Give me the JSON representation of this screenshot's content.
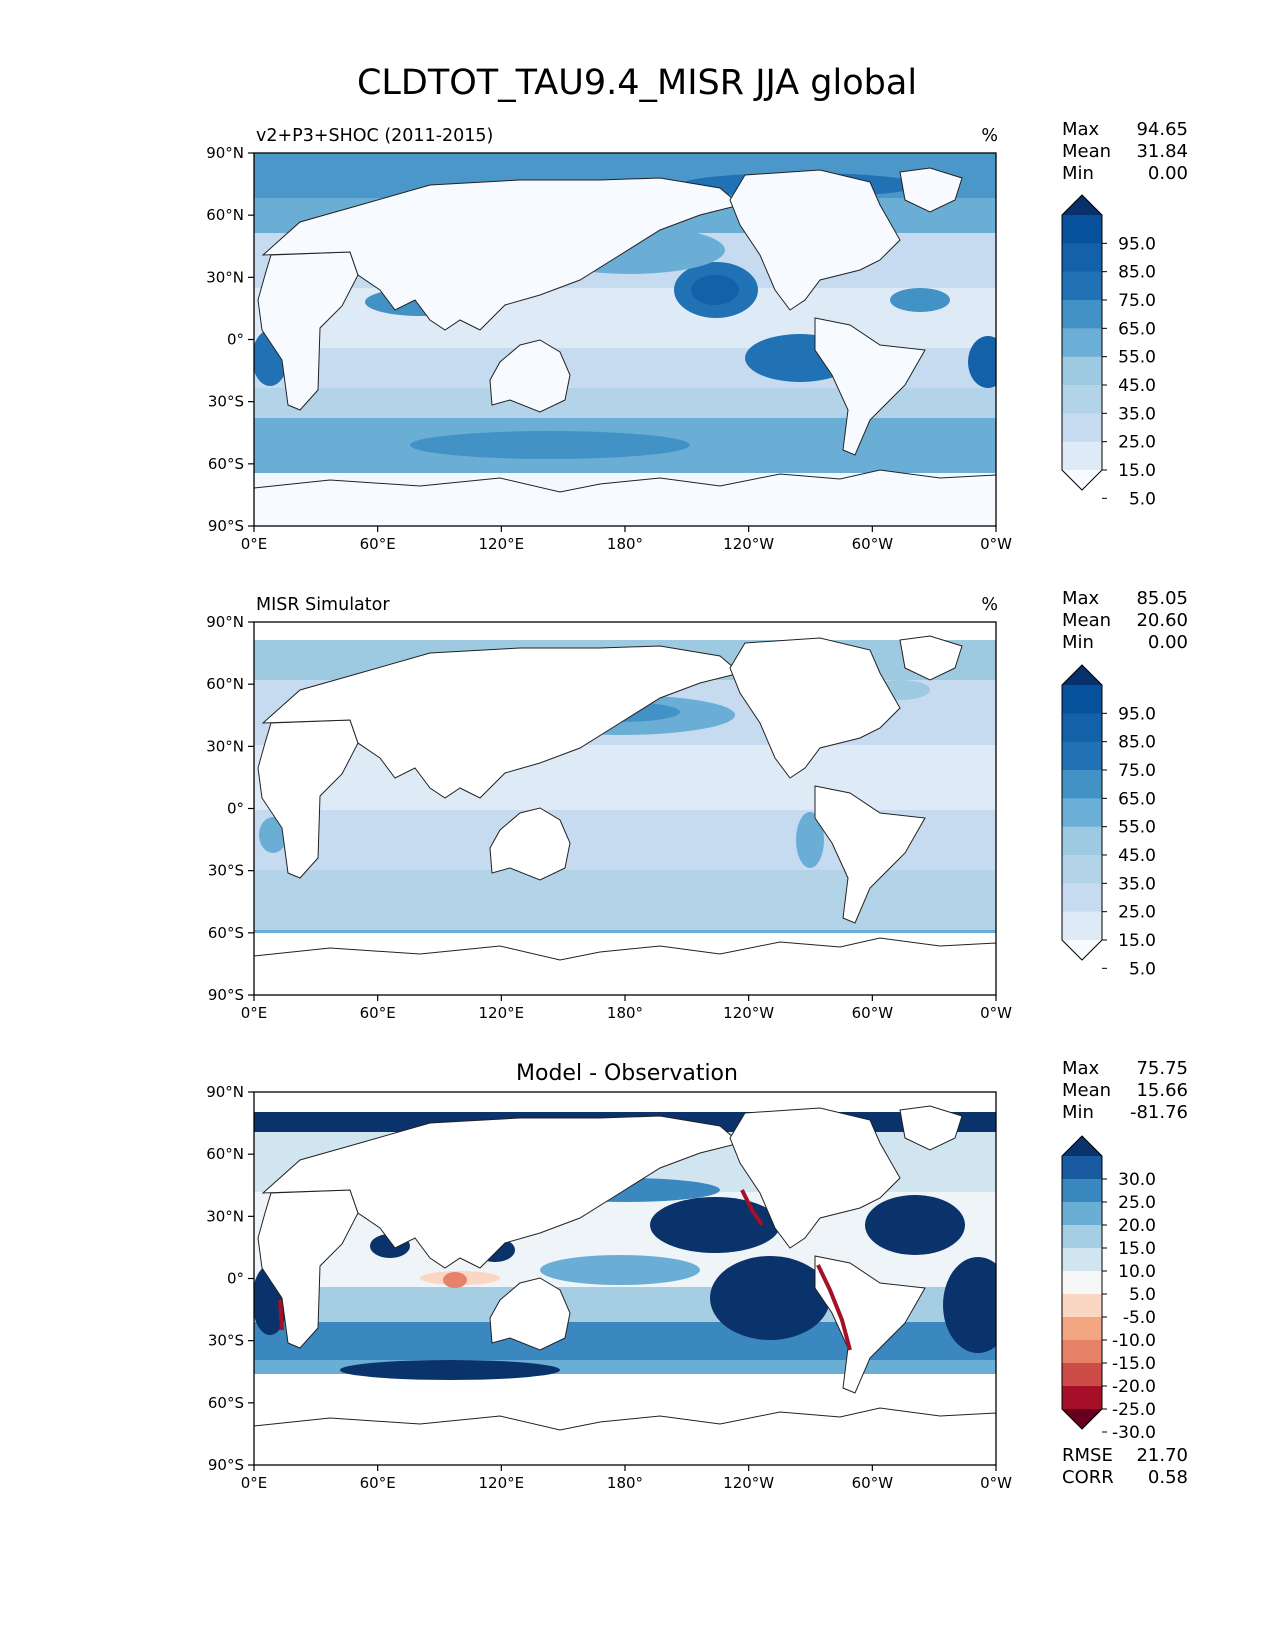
{
  "title": "CLDTOT_TAU9.4_MISR JJA global",
  "lat_ticks": [
    "90°N",
    "60°N",
    "30°N",
    "0°",
    "30°S",
    "60°S",
    "90°S"
  ],
  "lon_ticks": [
    "0°E",
    "60°E",
    "120°E",
    "180°",
    "120°W",
    "60°W",
    "0°W"
  ],
  "colors": {
    "blues": [
      "#f7fbff",
      "#deebf7",
      "#c6dbef",
      "#b3d3e8",
      "#9ecae1",
      "#6baed6",
      "#4292c6",
      "#2171b5",
      "#1361a9",
      "#08519c",
      "#08306b"
    ],
    "diff": [
      "#67001f",
      "#a50f28",
      "#cc4c47",
      "#e58267",
      "#f4a582",
      "#fbd7c3",
      "#f7f7f7",
      "#d1e5f0",
      "#a6cee3",
      "#6aaed6",
      "#3b88c0",
      "#1a5aa0",
      "#0a326b"
    ]
  },
  "panels": [
    {
      "left_title": "v2+P3+SHOC (2011-2015)",
      "center_title": "",
      "units": "%",
      "stats": [
        {
          "label": "Max",
          "value": "94.65"
        },
        {
          "label": "Mean",
          "value": "31.84"
        },
        {
          "label": "Min",
          "value": "0.00"
        }
      ],
      "colorbar_labels": [
        "95.0",
        "85.0",
        "75.0",
        "65.0",
        "55.0",
        "45.0",
        "35.0",
        "25.0",
        "15.0",
        "5.0"
      ],
      "extra_stats": []
    },
    {
      "left_title": "MISR Simulator",
      "center_title": "",
      "units": "%",
      "stats": [
        {
          "label": "Max",
          "value": "85.05"
        },
        {
          "label": "Mean",
          "value": "20.60"
        },
        {
          "label": "Min",
          "value": "0.00"
        }
      ],
      "colorbar_labels": [
        "95.0",
        "85.0",
        "75.0",
        "65.0",
        "55.0",
        "45.0",
        "35.0",
        "25.0",
        "15.0",
        "5.0"
      ],
      "extra_stats": []
    },
    {
      "left_title": "",
      "center_title": "Model - Observation",
      "units": "",
      "stats": [
        {
          "label": "Max",
          "value": "75.75"
        },
        {
          "label": "Mean",
          "value": "15.66"
        },
        {
          "label": "Min",
          "value": "-81.76"
        }
      ],
      "colorbar_labels": [
        "30.0",
        "25.0",
        "20.0",
        "15.0",
        "10.0",
        "5.0",
        "-5.0",
        "-10.0",
        "-15.0",
        "-20.0",
        "-25.0",
        "-30.0"
      ],
      "extra_stats": [
        {
          "label": "RMSE",
          "value": "21.70"
        },
        {
          "label": "CORR",
          "value": "0.58"
        }
      ]
    }
  ]
}
